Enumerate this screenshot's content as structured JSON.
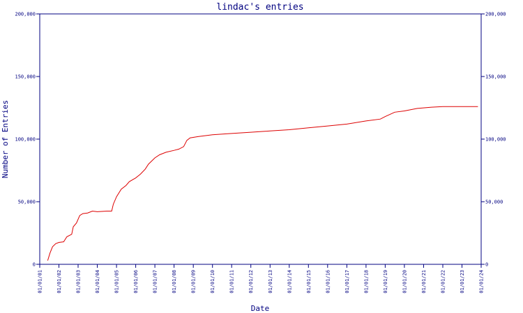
{
  "chart_data": {
    "type": "line",
    "title": "lindac's entries",
    "xlabel": "Date",
    "ylabel": "Number of Entries",
    "ylim": [
      0,
      200000
    ],
    "xlim": [
      "2001-01-01",
      "2024-01-01"
    ],
    "yticks": [
      {
        "value": 0,
        "label": "0"
      },
      {
        "value": 50000,
        "label": "50,000"
      },
      {
        "value": 100000,
        "label": "100,000"
      },
      {
        "value": 150000,
        "label": "150,000"
      },
      {
        "value": 200000,
        "label": "200,000"
      }
    ],
    "xticks": [
      {
        "date": "2001-01-01",
        "label": "01/01/01"
      },
      {
        "date": "2002-01-01",
        "label": "01/01/02"
      },
      {
        "date": "2003-01-01",
        "label": "01/01/03"
      },
      {
        "date": "2004-01-01",
        "label": "01/01/04"
      },
      {
        "date": "2005-01-01",
        "label": "01/01/05"
      },
      {
        "date": "2006-01-01",
        "label": "01/01/06"
      },
      {
        "date": "2007-01-01",
        "label": "01/01/07"
      },
      {
        "date": "2008-01-01",
        "label": "01/01/08"
      },
      {
        "date": "2009-01-01",
        "label": "01/01/09"
      },
      {
        "date": "2010-01-01",
        "label": "01/01/10"
      },
      {
        "date": "2011-01-01",
        "label": "01/01/11"
      },
      {
        "date": "2012-01-01",
        "label": "01/01/12"
      },
      {
        "date": "2013-01-01",
        "label": "01/01/13"
      },
      {
        "date": "2014-01-01",
        "label": "01/01/14"
      },
      {
        "date": "2015-01-01",
        "label": "01/01/15"
      },
      {
        "date": "2016-01-01",
        "label": "01/01/16"
      },
      {
        "date": "2017-01-01",
        "label": "01/01/17"
      },
      {
        "date": "2018-01-01",
        "label": "01/01/18"
      },
      {
        "date": "2019-01-01",
        "label": "01/01/19"
      },
      {
        "date": "2020-01-01",
        "label": "01/01/20"
      },
      {
        "date": "2021-01-01",
        "label": "01/01/21"
      },
      {
        "date": "2022-01-01",
        "label": "01/01/22"
      },
      {
        "date": "2023-01-01",
        "label": "01/01/23"
      },
      {
        "date": "2024-01-01",
        "label": "01/01/24"
      }
    ],
    "grid": false,
    "legend": "none",
    "colors": {
      "axis": "#000080",
      "line": "#dd0000",
      "text": "#000080"
    },
    "series": [
      {
        "points": [
          [
            "2001-06-01",
            3000
          ],
          [
            "2001-07-15",
            9000
          ],
          [
            "2001-09-01",
            14000
          ],
          [
            "2001-11-01",
            16500
          ],
          [
            "2002-01-01",
            17500
          ],
          [
            "2002-04-01",
            18000
          ],
          [
            "2002-06-01",
            22000
          ],
          [
            "2002-09-01",
            24000
          ],
          [
            "2002-10-01",
            30000
          ],
          [
            "2002-12-01",
            33000
          ],
          [
            "2003-02-01",
            39000
          ],
          [
            "2003-04-01",
            40500
          ],
          [
            "2003-07-01",
            41000
          ],
          [
            "2003-10-01",
            42500
          ],
          [
            "2004-01-01",
            42000
          ],
          [
            "2004-07-01",
            42500
          ],
          [
            "2004-10-01",
            42500
          ],
          [
            "2004-11-01",
            48000
          ],
          [
            "2005-01-01",
            54000
          ],
          [
            "2005-04-01",
            60000
          ],
          [
            "2005-07-01",
            63000
          ],
          [
            "2005-09-01",
            66000
          ],
          [
            "2006-01-01",
            69000
          ],
          [
            "2006-04-01",
            72000
          ],
          [
            "2006-07-01",
            76000
          ],
          [
            "2006-09-01",
            80000
          ],
          [
            "2007-01-01",
            85000
          ],
          [
            "2007-04-01",
            87500
          ],
          [
            "2007-08-01",
            89500
          ],
          [
            "2008-01-01",
            91000
          ],
          [
            "2008-04-01",
            92000
          ],
          [
            "2008-07-01",
            94000
          ],
          [
            "2008-09-01",
            99000
          ],
          [
            "2008-11-01",
            101000
          ],
          [
            "2009-04-01",
            102000
          ],
          [
            "2010-01-01",
            103500
          ],
          [
            "2011-01-01",
            104500
          ],
          [
            "2012-01-01",
            105500
          ],
          [
            "2013-01-01",
            106500
          ],
          [
            "2014-01-01",
            107500
          ],
          [
            "2015-01-01",
            109000
          ],
          [
            "2016-01-01",
            110500
          ],
          [
            "2017-01-01",
            112000
          ],
          [
            "2018-01-01",
            114500
          ],
          [
            "2018-10-01",
            116000
          ],
          [
            "2019-01-01",
            118000
          ],
          [
            "2019-07-01",
            121500
          ],
          [
            "2020-01-01",
            122500
          ],
          [
            "2020-09-01",
            124500
          ],
          [
            "2021-06-01",
            125500
          ],
          [
            "2022-01-01",
            126000
          ],
          [
            "2023-11-01",
            126000
          ]
        ]
      }
    ]
  }
}
